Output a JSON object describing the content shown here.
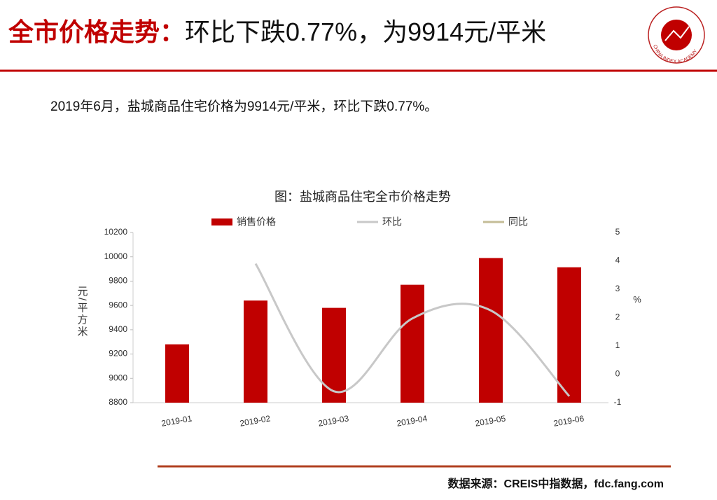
{
  "header": {
    "title_lead": "全市价格走势：",
    "title_rest": "环比下跌0.77%，为9914元/平米",
    "logo_text": "CHINA INDEX ACADEMY"
  },
  "summary": "2019年6月，盐城商品住宅价格为9914元/平米，环比下跌0.77%。",
  "chart_data": {
    "type": "bar",
    "title": "图：盐城商品住宅全市价格走势",
    "categories": [
      "2019-01",
      "2019-02",
      "2019-03",
      "2019-04",
      "2019-05",
      "2019-06"
    ],
    "series": [
      {
        "name": "销售价格",
        "type": "bar",
        "color": "#c00000",
        "values": [
          9280,
          9640,
          9580,
          9770,
          9990,
          9914
        ]
      },
      {
        "name": "环比",
        "type": "line",
        "axis": "y2",
        "color": "#c8c8c8",
        "values": [
          null,
          3.9,
          -0.6,
          1.97,
          2.25,
          -0.77
        ]
      },
      {
        "name": "同比",
        "type": "line",
        "axis": "y2",
        "color": "#c4bd97",
        "values": [
          null,
          null,
          null,
          null,
          null,
          null
        ]
      }
    ],
    "ylabel": "元/平方米",
    "y2label": "%",
    "ylim": [
      8800,
      10200
    ],
    "yticks": [
      8800,
      9000,
      9200,
      9400,
      9600,
      9800,
      10000,
      10200
    ],
    "y2lim": [
      -1,
      5
    ],
    "y2ticks": [
      -1,
      0,
      1,
      2,
      3,
      4,
      5
    ],
    "legend": "top",
    "smooth": true
  },
  "source": "数据来源：CREIS中指数据，fdc.fang.com"
}
